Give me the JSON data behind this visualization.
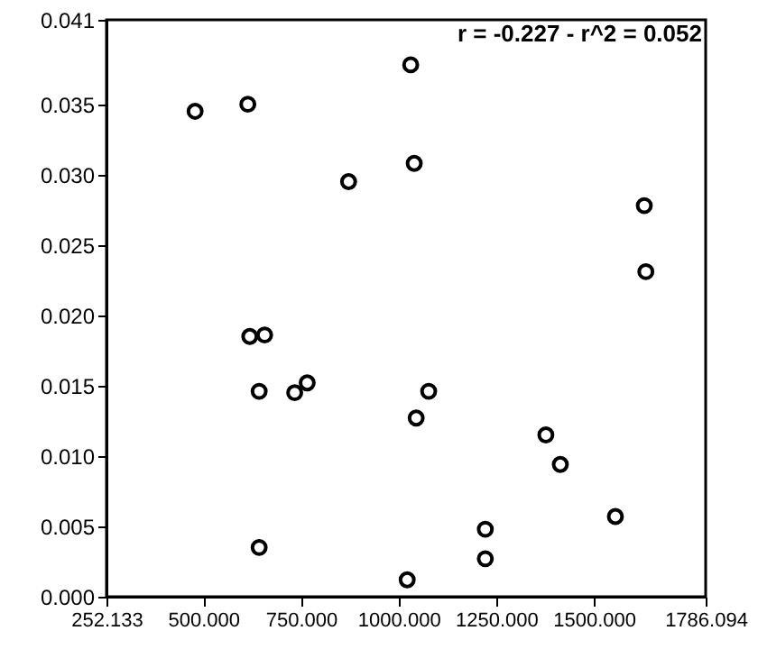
{
  "chart_data": {
    "type": "scatter",
    "annotations": [
      "r = -0.227 - r^2 = 0.052"
    ],
    "x": [
      479,
      614,
      872,
      1031,
      1040,
      1629,
      1633,
      619,
      657,
      643,
      734,
      766,
      1077,
      1045,
      1377,
      1414,
      1555,
      1222,
      1222,
      1022,
      643
    ],
    "series": [
      {
        "color": "#000000",
        "values": [
          0.0345,
          0.035,
          0.0295,
          0.0378,
          0.0308,
          0.0278,
          0.0231,
          0.0185,
          0.0186,
          0.0146,
          0.0145,
          0.0152,
          0.0146,
          0.0127,
          0.0115,
          0.0094,
          0.0057,
          0.0048,
          0.0027,
          0.0012,
          0.0035
        ]
      }
    ],
    "xlim": [
      252.133,
      1786.094
    ],
    "xticks": [
      {
        "value": 252.133,
        "label": "252.133"
      },
      {
        "value": 500,
        "label": "500.000"
      },
      {
        "value": 750,
        "label": "750.000"
      },
      {
        "value": 1000,
        "label": "1000.000"
      },
      {
        "value": 1250,
        "label": "1250.000"
      },
      {
        "value": 1500,
        "label": "1500.000"
      },
      {
        "value": 1786.094,
        "label": "1786.094"
      }
    ],
    "ylim": [
      0,
      0.041
    ],
    "yticks": [
      {
        "value": 0,
        "label": "0.000"
      },
      {
        "value": 0.005,
        "label": "0.005"
      },
      {
        "value": 0.01,
        "label": "0.010"
      },
      {
        "value": 0.015,
        "label": "0.015"
      },
      {
        "value": 0.02,
        "label": "0.020"
      },
      {
        "value": 0.025,
        "label": "0.025"
      },
      {
        "value": 0.03,
        "label": "0.030"
      },
      {
        "value": 0.035,
        "label": "0.035"
      },
      {
        "value": 0.041,
        "label": "0.041"
      }
    ],
    "marker": "circle",
    "grid": false
  }
}
